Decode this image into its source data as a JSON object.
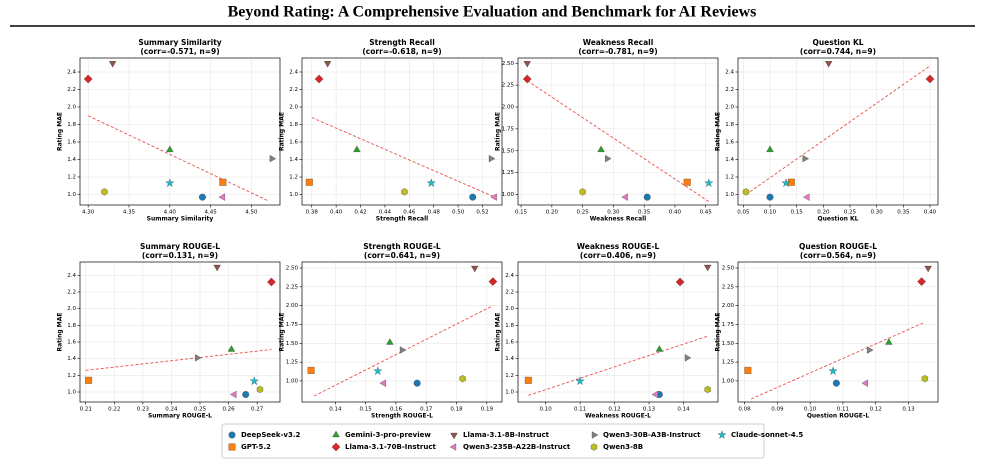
{
  "title": "Beyond Rating: A Comprehensive Evaluation and Benchmark for AI Reviews",
  "legend": {
    "models": [
      {
        "name": "DeepSeek-v3.2",
        "color": "#1f77b4",
        "marker": "circle"
      },
      {
        "name": "GPT-5.2",
        "color": "#ff7f0e",
        "marker": "square"
      },
      {
        "name": "Gemini-3-pro-preview",
        "color": "#2ca02c",
        "marker": "triangle-up"
      },
      {
        "name": "Llama-3.1-70B-Instruct",
        "color": "#d62728",
        "marker": "diamond"
      },
      {
        "name": "Llama-3.1-8B-Instruct",
        "color": "#8c564b",
        "marker": "triangle-down"
      },
      {
        "name": "Qwen3-235B-A22B-Instruct",
        "color": "#e377c2",
        "marker": "triangle-left"
      },
      {
        "name": "Qwen3-30B-A3B-Instruct",
        "color": "#7f7f7f",
        "marker": "triangle-right"
      },
      {
        "name": "Qwen3-8B",
        "color": "#bcbd22",
        "marker": "hexagon"
      },
      {
        "name": "Claude-sonnet-4.5",
        "color": "#17becf",
        "marker": "star"
      }
    ]
  },
  "chart_data": [
    {
      "type": "scatter",
      "title": "Summary Similarity",
      "subtitle": "(corr=-0.571, n=9)",
      "xlabel": "Summary Similarity",
      "ylabel": "Rating MAE",
      "grid": true,
      "x": [
        4.44,
        4.465,
        4.4,
        4.3,
        4.33,
        4.465,
        4.525,
        4.32,
        4.4
      ],
      "values": [
        0.97,
        1.14,
        1.51,
        2.32,
        2.5,
        0.97,
        1.41,
        1.03,
        1.13
      ],
      "trendline": {
        "x": [
          4.3,
          4.52
        ],
        "y": [
          1.9,
          0.93
        ]
      },
      "xlim": [
        4.29,
        4.535
      ],
      "ylim": [
        0.88,
        2.56
      ],
      "xticks": [
        {
          "value": 4.3,
          "label": "4.30"
        },
        4.35,
        {
          "value": 4.4,
          "label": "4.40"
        },
        4.45,
        {
          "value": 4.5,
          "label": "4.50"
        }
      ],
      "yticks": [
        {
          "value": 1,
          "label": "1.0"
        },
        1.2,
        1.4,
        1.6,
        1.8,
        {
          "value": 2,
          "label": "2.0"
        },
        2.2,
        2.4
      ]
    },
    {
      "type": "scatter",
      "title": "Strength Recall",
      "subtitle": "(corr=-0.618, n=9)",
      "xlabel": "Strength Recall",
      "ylabel": "Rating MAE",
      "grid": true,
      "x": [
        0.512,
        0.378,
        0.417,
        0.386,
        0.393,
        0.53,
        0.527,
        0.456,
        0.478
      ],
      "values": [
        0.97,
        1.14,
        1.51,
        2.32,
        2.5,
        0.97,
        1.41,
        1.03,
        1.13
      ],
      "trendline": {
        "x": [
          0.38,
          0.53
        ],
        "y": [
          1.88,
          0.97
        ]
      },
      "xlim": [
        0.372,
        0.536
      ],
      "ylim": [
        0.88,
        2.56
      ],
      "xticks": [
        0.38,
        {
          "value": 0.4,
          "label": "0.40"
        },
        0.42,
        0.44,
        0.46,
        0.48,
        {
          "value": 0.5,
          "label": "0.50"
        },
        0.52
      ],
      "yticks": [
        {
          "value": 1,
          "label": "1.0"
        },
        1.2,
        1.4,
        1.6,
        1.8,
        {
          "value": 2,
          "label": "2.0"
        },
        2.2,
        2.4
      ]
    },
    {
      "type": "scatter",
      "title": "Weakness Recall",
      "subtitle": "(corr=-0.781, n=9)",
      "xlabel": "Weakness Recall",
      "ylabel": "Rating MAE",
      "grid": true,
      "x": [
        0.355,
        0.42,
        0.28,
        0.16,
        0.16,
        0.32,
        0.29,
        0.25,
        0.455
      ],
      "values": [
        0.97,
        1.14,
        1.51,
        2.32,
        2.5,
        0.97,
        1.41,
        1.03,
        1.13
      ],
      "trendline": {
        "x": [
          0.16,
          0.455
        ],
        "y": [
          2.3,
          0.92
        ]
      },
      "xlim": [
        0.145,
        0.47
      ],
      "ylim": [
        0.88,
        2.56
      ],
      "xticks": [
        0.15,
        {
          "value": 0.2,
          "label": "0.20"
        },
        0.25,
        {
          "value": 0.3,
          "label": "0.30"
        },
        0.35,
        {
          "value": 0.4,
          "label": "0.40"
        },
        0.45
      ],
      "yticks": [
        {
          "value": 1,
          "label": "1.00"
        },
        1.25,
        {
          "value": 1.5,
          "label": "1.50"
        },
        1.75,
        {
          "value": 2,
          "label": "2.00"
        },
        2.25,
        {
          "value": 2.5,
          "label": "2.50"
        }
      ]
    },
    {
      "type": "scatter",
      "title": "Question KL",
      "subtitle": "(corr=0.744, n=9)",
      "xlabel": "Question KL",
      "ylabel": "Rating MAE",
      "grid": true,
      "x": [
        0.1,
        0.14,
        0.1,
        0.4,
        0.21,
        0.17,
        0.165,
        0.055,
        0.13
      ],
      "values": [
        0.97,
        1.14,
        1.51,
        2.32,
        2.5,
        0.97,
        1.41,
        1.03,
        1.13
      ],
      "trendline": {
        "x": [
          0.055,
          0.4
        ],
        "y": [
          1.0,
          2.47
        ]
      },
      "xlim": [
        0.04,
        0.415
      ],
      "ylim": [
        0.88,
        2.56
      ],
      "xticks": [
        0.05,
        {
          "value": 0.1,
          "label": "0.10"
        },
        0.15,
        {
          "value": 0.2,
          "label": "0.20"
        },
        0.25,
        {
          "value": 0.3,
          "label": "0.30"
        },
        0.35,
        {
          "value": 0.4,
          "label": "0.40"
        }
      ],
      "yticks": [
        {
          "value": 1,
          "label": "1.0"
        },
        1.2,
        1.4,
        1.6,
        1.8,
        {
          "value": 2,
          "label": "2.0"
        },
        2.2,
        2.4
      ]
    },
    {
      "type": "scatter",
      "title": "Summary ROUGE-L",
      "subtitle": "(corr=0.131, n=9)",
      "xlabel": "Summary ROUGE-L",
      "ylabel": "Rating MAE",
      "grid": true,
      "x": [
        0.266,
        0.211,
        0.261,
        0.275,
        0.256,
        0.262,
        0.249,
        0.271,
        0.269
      ],
      "values": [
        0.97,
        1.14,
        1.51,
        2.32,
        2.5,
        0.97,
        1.41,
        1.03,
        1.13
      ],
      "trendline": {
        "x": [
          0.21,
          0.275
        ],
        "y": [
          1.26,
          1.51
        ]
      },
      "xlim": [
        0.208,
        0.278
      ],
      "ylim": [
        0.88,
        2.56
      ],
      "xticks": [
        0.21,
        0.22,
        0.23,
        0.24,
        0.25,
        0.26,
        0.27
      ],
      "yticks": [
        {
          "value": 1,
          "label": "1.0"
        },
        1.2,
        1.4,
        1.6,
        1.8,
        {
          "value": 2,
          "label": "2.0"
        },
        2.2,
        2.4
      ]
    },
    {
      "type": "scatter",
      "title": "Strength ROUGE-L",
      "subtitle": "(corr=0.641, n=9)",
      "xlabel": "Strength ROUGE-L",
      "ylabel": "Rating MAE",
      "grid": true,
      "x": [
        0.167,
        0.132,
        0.158,
        0.192,
        0.186,
        0.156,
        0.162,
        0.182,
        0.154
      ],
      "values": [
        0.97,
        1.14,
        1.51,
        2.32,
        2.5,
        0.97,
        1.41,
        1.03,
        1.13
      ],
      "trendline": {
        "x": [
          0.133,
          0.192
        ],
        "y": [
          0.8,
          2.0
        ]
      },
      "xlim": [
        0.129,
        0.195
      ],
      "ylim": [
        0.72,
        2.58
      ],
      "xticks": [
        0.14,
        0.15,
        0.16,
        0.17,
        0.18,
        0.19
      ],
      "yticks": [
        {
          "value": 1,
          "label": "1.00"
        },
        1.25,
        {
          "value": 1.5,
          "label": "1.50"
        },
        1.75,
        {
          "value": 2,
          "label": "2.00"
        },
        2.25,
        {
          "value": 2.5,
          "label": "2.50"
        }
      ]
    },
    {
      "type": "scatter",
      "title": "Weakness ROUGE-L",
      "subtitle": "(corr=0.406, n=9)",
      "xlabel": "Weakness ROUGE-L",
      "ylabel": "Rating MAE",
      "grid": true,
      "x": [
        0.133,
        0.095,
        0.133,
        0.139,
        0.147,
        0.132,
        0.141,
        0.147,
        0.11
      ],
      "values": [
        0.97,
        1.14,
        1.51,
        2.32,
        2.5,
        0.97,
        1.41,
        1.03,
        1.13
      ],
      "trendline": {
        "x": [
          0.095,
          0.147
        ],
        "y": [
          0.96,
          1.67
        ]
      },
      "xlim": [
        0.092,
        0.15
      ],
      "ylim": [
        0.88,
        2.56
      ],
      "xticks": [
        {
          "value": 0.1,
          "label": "0.10"
        },
        0.11,
        0.12,
        0.13,
        0.14
      ],
      "yticks": [
        {
          "value": 1,
          "label": "1.0"
        },
        1.2,
        1.4,
        1.6,
        1.8,
        {
          "value": 2,
          "label": "2.0"
        },
        2.2,
        2.4
      ]
    },
    {
      "type": "scatter",
      "title": "Question ROUGE-L",
      "subtitle": "(corr=0.564, n=9)",
      "xlabel": "Question ROUGE-L",
      "ylabel": "Rating MAE",
      "grid": true,
      "x": [
        0.108,
        0.081,
        0.124,
        0.134,
        0.136,
        0.117,
        0.118,
        0.135,
        0.107
      ],
      "values": [
        0.97,
        1.14,
        1.51,
        2.32,
        2.5,
        0.97,
        1.41,
        1.03,
        1.13
      ],
      "trendline": {
        "x": [
          0.082,
          0.135
        ],
        "y": [
          0.76,
          1.78
        ]
      },
      "xlim": [
        0.078,
        0.139
      ],
      "ylim": [
        0.72,
        2.58
      ],
      "xticks": [
        0.08,
        0.09,
        {
          "value": 0.1,
          "label": "0.10"
        },
        0.11,
        0.12,
        0.13
      ],
      "yticks": [
        {
          "value": 1,
          "label": "1.00"
        },
        1.25,
        {
          "value": 1.5,
          "label": "1.50"
        },
        1.75,
        {
          "value": 2,
          "label": "2.00"
        },
        2.25,
        {
          "value": 2.5,
          "label": "2.50"
        }
      ]
    }
  ]
}
